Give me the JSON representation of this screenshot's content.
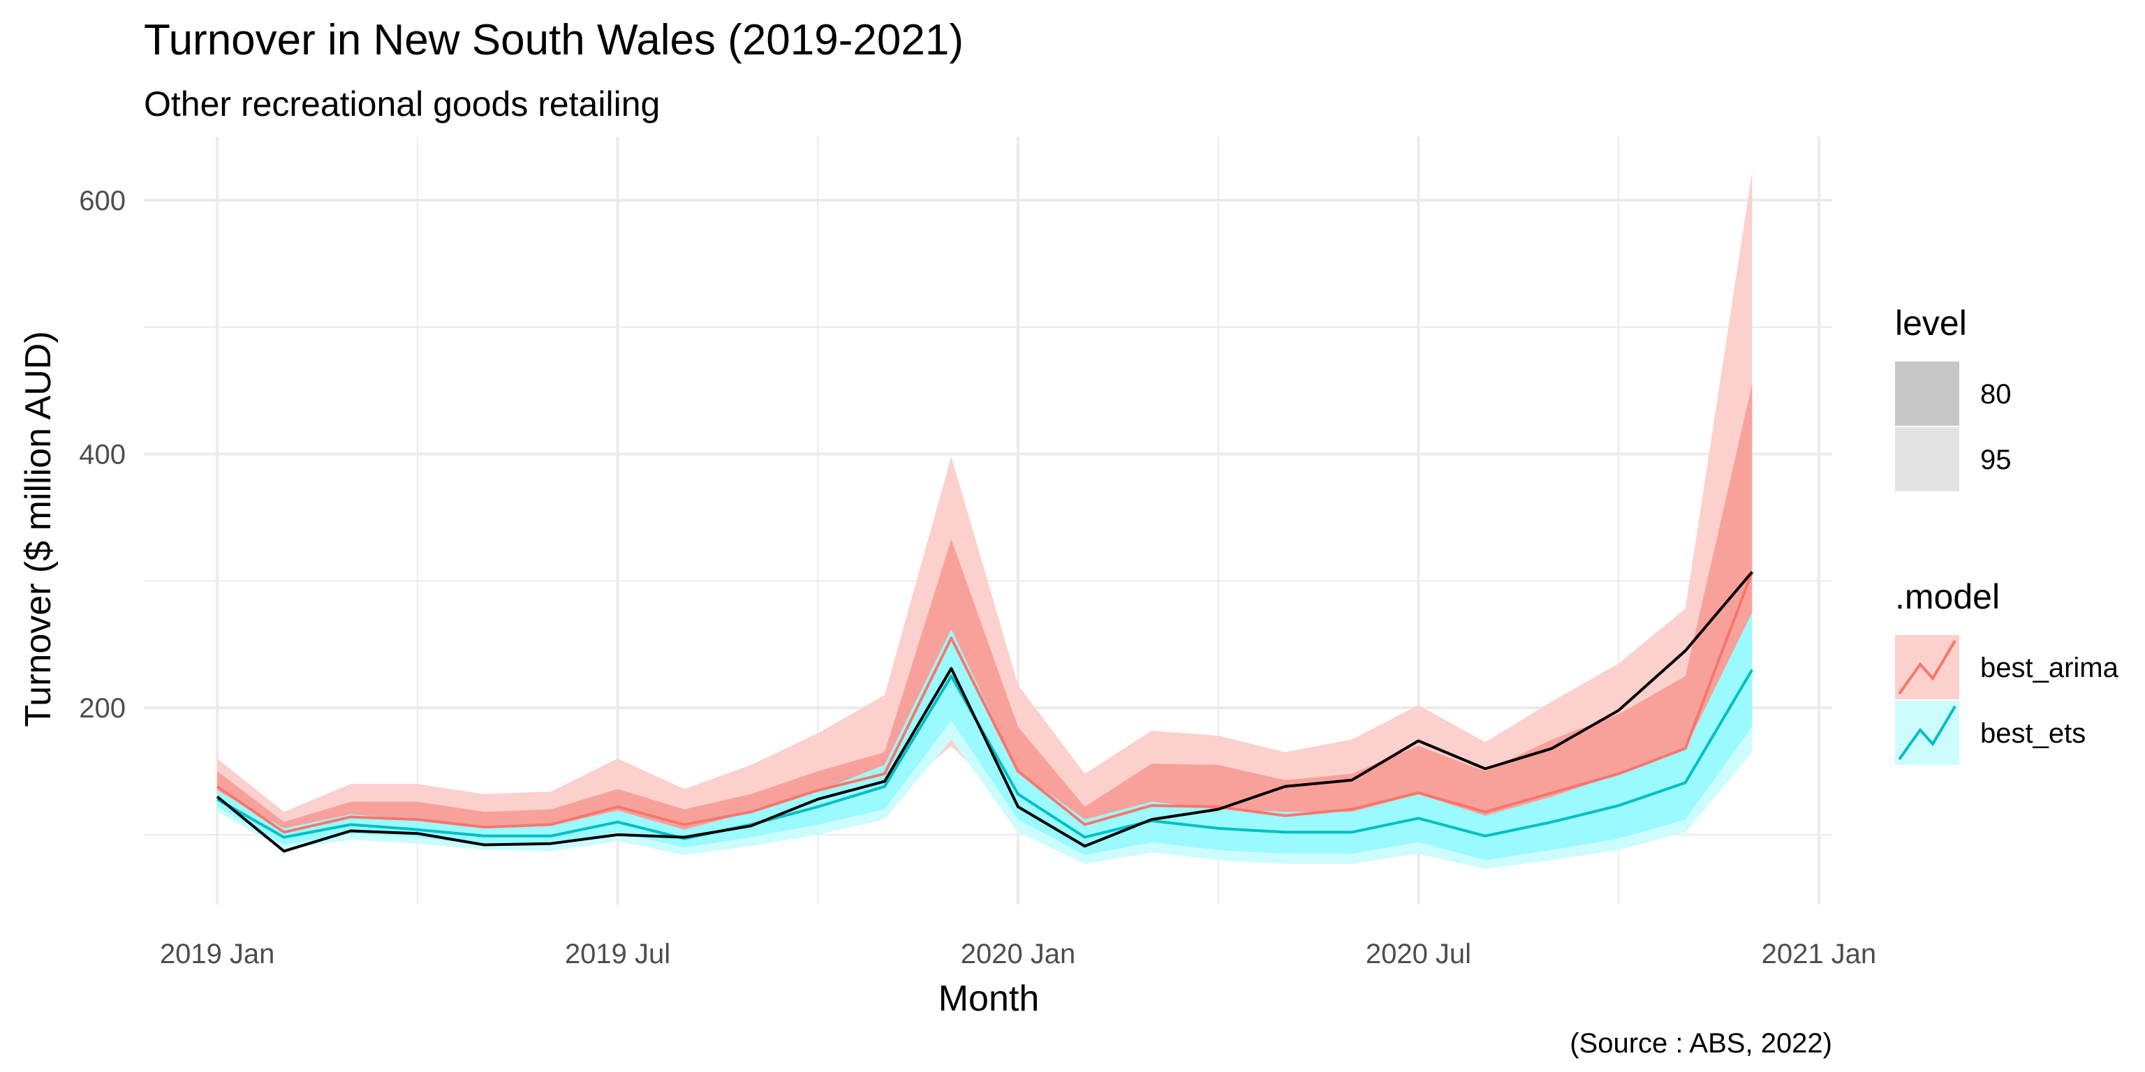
{
  "chart_data": {
    "type": "line",
    "title": "Turnover in New South Wales (2019-2021)",
    "subtitle": "Other recreational goods retailing",
    "xlabel": "Month",
    "ylabel": "Turnover ($ million AUD)",
    "caption": "(Source : ABS, 2022)",
    "x_ticks": [
      "2019 Jan",
      "2019 Jul",
      "2020 Jan",
      "2020 Jul",
      "2021 Jan"
    ],
    "x_tick_months": [
      0,
      6,
      12,
      18,
      24
    ],
    "y_ticks": [
      200,
      400,
      600
    ],
    "ylim": [
      45,
      650
    ],
    "xlim": [
      -1.1,
      24.2
    ],
    "grid": true,
    "months": [
      "2019 Jan",
      "2019 Feb",
      "2019 Mar",
      "2019 Apr",
      "2019 May",
      "2019 Jun",
      "2019 Jul",
      "2019 Aug",
      "2019 Sep",
      "2019 Oct",
      "2019 Nov",
      "2019 Dec",
      "2020 Jan",
      "2020 Feb",
      "2020 Mar",
      "2020 Apr",
      "2020 May",
      "2020 Jun",
      "2020 Jul",
      "2020 Aug",
      "2020 Sep",
      "2020 Oct",
      "2020 Nov",
      "2020 Dec"
    ],
    "actual": [
      130,
      87,
      103,
      101,
      92,
      93,
      100,
      98,
      107,
      128,
      142,
      231,
      122,
      91,
      112,
      120,
      138,
      143,
      174,
      152,
      168,
      198,
      245,
      307
    ],
    "series": [
      {
        "name": "best_arima",
        "color": "#f8766d",
        "mean": [
          138,
          102,
          114,
          112,
          106,
          108,
          122,
          108,
          118,
          135,
          148,
          255,
          150,
          108,
          123,
          122,
          115,
          120,
          133,
          118,
          133,
          148,
          168,
          307
        ],
        "lower_80": [
          130,
          96,
          104,
          102,
          97,
          98,
          110,
          99,
          108,
          123,
          135,
          232,
          130,
          98,
          112,
          110,
          104,
          108,
          118,
          106,
          118,
          130,
          145,
          240
        ],
        "upper_80": [
          150,
          110,
          126,
          126,
          118,
          120,
          136,
          120,
          132,
          150,
          165,
          333,
          185,
          122,
          156,
          155,
          143,
          148,
          170,
          150,
          175,
          195,
          225,
          455
        ],
        "lower_95": [
          126,
          92,
          100,
          98,
          93,
          94,
          105,
          95,
          104,
          117,
          125,
          170,
          118,
          94,
          108,
          104,
          100,
          104,
          112,
          101,
          112,
          123,
          138,
          205
        ],
        "upper_95": [
          160,
          118,
          140,
          140,
          132,
          134,
          160,
          136,
          155,
          180,
          210,
          398,
          218,
          148,
          182,
          178,
          165,
          175,
          202,
          173,
          205,
          235,
          278,
          622
        ]
      },
      {
        "name": "best_ets",
        "color": "#00bfc4",
        "mean": [
          128,
          98,
          108,
          104,
          99,
          99,
          110,
          97,
          108,
          122,
          138,
          225,
          132,
          98,
          111,
          105,
          102,
          102,
          113,
          99,
          110,
          123,
          141,
          230
        ],
        "lower_80": [
          122,
          92,
          101,
          98,
          92,
          92,
          102,
          90,
          98,
          108,
          120,
          190,
          112,
          84,
          94,
          88,
          85,
          85,
          94,
          80,
          88,
          97,
          112,
          185
        ],
        "upper_80": [
          135,
          105,
          116,
          112,
          107,
          107,
          119,
          104,
          118,
          134,
          155,
          262,
          150,
          112,
          126,
          120,
          118,
          118,
          132,
          115,
          130,
          148,
          168,
          275
        ],
        "lower_95": [
          118,
          88,
          96,
          93,
          88,
          87,
          95,
          84,
          91,
          100,
          112,
          175,
          102,
          77,
          86,
          80,
          77,
          77,
          85,
          73,
          80,
          88,
          102,
          165
        ],
        "upper_95": [
          140,
          110,
          121,
          118,
          112,
          112,
          126,
          110,
          125,
          142,
          165,
          275,
          160,
          118,
          134,
          130,
          128,
          128,
          142,
          124,
          140,
          158,
          180,
          300
        ]
      }
    ],
    "legend": {
      "position": "right",
      "level_title": "level",
      "levels": [
        {
          "label": "80",
          "color": "#c7c7c7"
        },
        {
          "label": "95",
          "color": "#e3e3e3"
        }
      ],
      "model_title": ".model",
      "models": [
        {
          "label": "best_arima"
        },
        {
          "label": "best_ets"
        }
      ]
    },
    "colors": {
      "arima_95": "#fcd0cd",
      "arima_80": "#f8a19b",
      "ets_95": "#cdfcfd",
      "ets_80": "#9afaff",
      "actual_line": "#000000",
      "grid": "#ebebeb"
    }
  }
}
